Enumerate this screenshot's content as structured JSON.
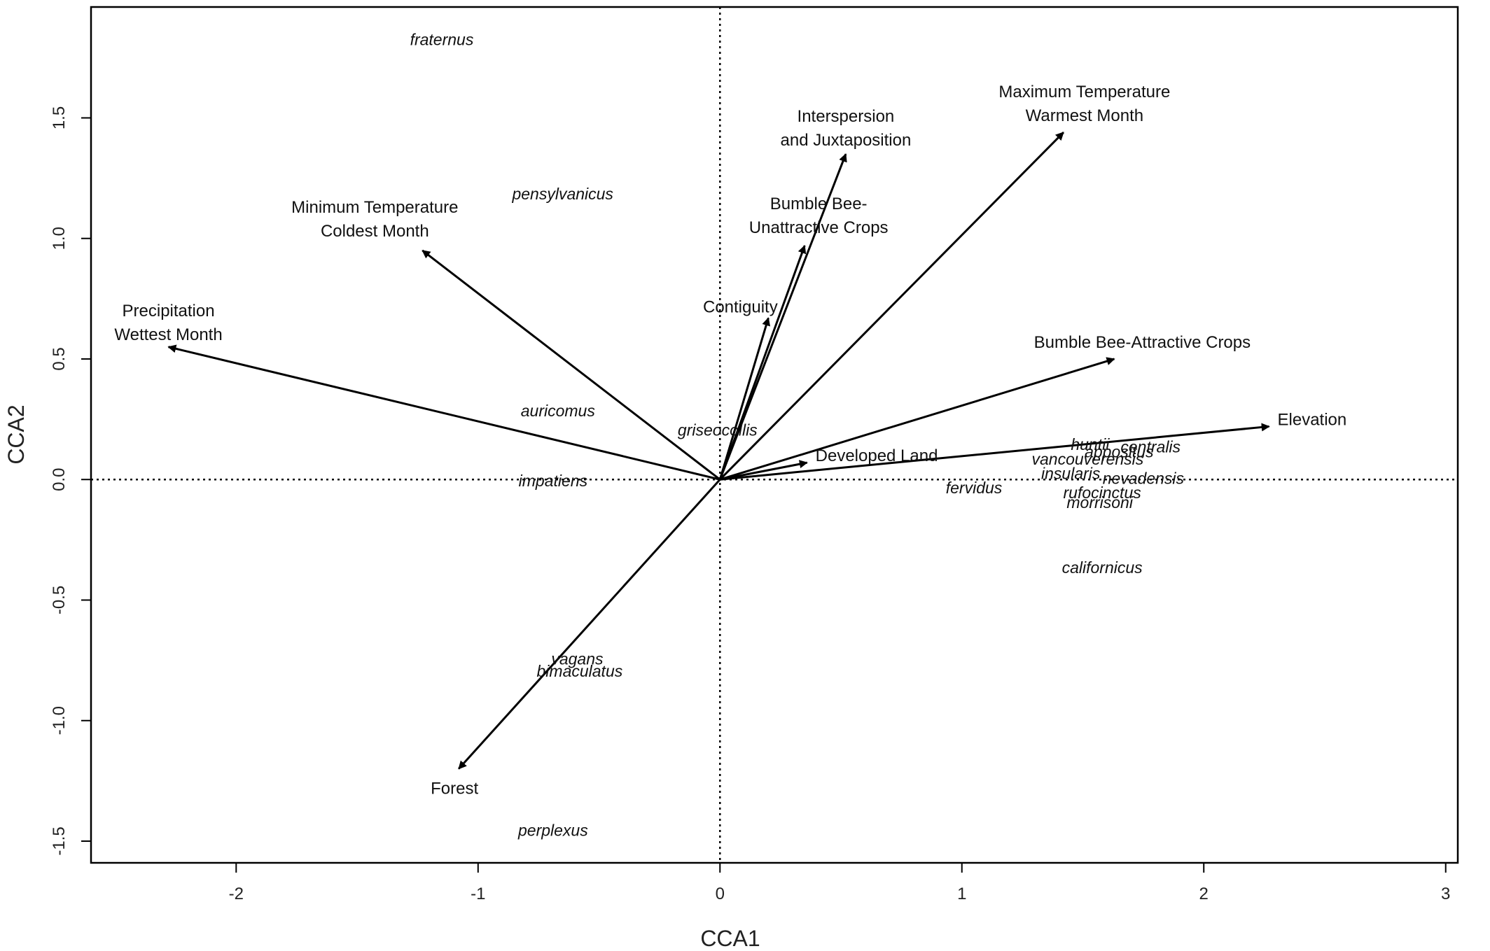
{
  "chart_data": {
    "type": "scatter",
    "subtype": "cca-biplot",
    "title": "",
    "xlabel": "CCA1",
    "ylabel": "CCA2",
    "xlim": [
      -2.6,
      3.05
    ],
    "ylim": [
      -1.59,
      1.96
    ],
    "xticks": [
      -2,
      -1,
      0,
      1,
      2,
      3
    ],
    "yticks": [
      -1.5,
      -1.0,
      -0.5,
      0.0,
      0.5,
      1.0,
      1.5
    ],
    "xtick_labels": [
      "-2",
      "-1",
      "0",
      "1",
      "2",
      "3"
    ],
    "ytick_labels": [
      "-1.5",
      "-1.0",
      "-0.5",
      "0.0",
      "0.5",
      "1.0",
      "1.5"
    ],
    "reference_lines": {
      "x": 0,
      "y": 0,
      "style": "dotted"
    },
    "grid": false,
    "legend": "none",
    "line_color": "#000000",
    "environmental_vectors": [
      {
        "label": [
          "Precipitation",
          "Wettest Month"
        ],
        "x": -2.28,
        "y": 0.55
      },
      {
        "label": [
          "Minimum Temperature",
          "Coldest Month"
        ],
        "x": -1.23,
        "y": 0.95
      },
      {
        "label": [
          "Interspersion",
          "and Juxtaposition"
        ],
        "x": 0.52,
        "y": 1.35
      },
      {
        "label": [
          "Maximum Temperature",
          "Warmest Month"
        ],
        "x": 1.42,
        "y": 1.44
      },
      {
        "label": [
          "Bumble Bee-",
          "Unattractive Crops"
        ],
        "x": 0.35,
        "y": 0.97
      },
      {
        "label": [
          "Contiguity"
        ],
        "x": 0.2,
        "y": 0.67
      },
      {
        "label": [
          "Bumble Bee-Attractive Crops"
        ],
        "x": 1.63,
        "y": 0.5
      },
      {
        "label": [
          "Elevation"
        ],
        "x": 2.27,
        "y": 0.22
      },
      {
        "label": [
          "Developed Land"
        ],
        "x": 0.36,
        "y": 0.07
      },
      {
        "label": [
          "Forest"
        ],
        "x": -1.08,
        "y": -1.2
      }
    ],
    "species": [
      {
        "name": "fraternus",
        "x": -1.15,
        "y": 1.82
      },
      {
        "name": "pensylvanicus",
        "x": -0.65,
        "y": 1.18
      },
      {
        "name": "auricomus",
        "x": -0.67,
        "y": 0.28
      },
      {
        "name": "griseocollis",
        "x": -0.01,
        "y": 0.2
      },
      {
        "name": "impatiens",
        "x": -0.69,
        "y": -0.01
      },
      {
        "name": "vagans",
        "x": -0.59,
        "y": -0.75
      },
      {
        "name": "bimaculatus",
        "x": -0.58,
        "y": -0.8
      },
      {
        "name": "perplexus",
        "x": -0.69,
        "y": -1.46
      },
      {
        "name": "fervidus",
        "x": 1.05,
        "y": -0.04
      },
      {
        "name": "huntii",
        "x": 1.53,
        "y": 0.14
      },
      {
        "name": "centralis",
        "x": 1.78,
        "y": 0.13
      },
      {
        "name": "appositus",
        "x": 1.65,
        "y": 0.11
      },
      {
        "name": "vancouverensis",
        "x": 1.52,
        "y": 0.08
      },
      {
        "name": "insularis",
        "x": 1.45,
        "y": 0.02
      },
      {
        "name": "nevadensis",
        "x": 1.75,
        "y": 0.0
      },
      {
        "name": "rufocinctus",
        "x": 1.58,
        "y": -0.06
      },
      {
        "name": "morrisoni",
        "x": 1.57,
        "y": -0.1
      },
      {
        "name": "californicus",
        "x": 1.58,
        "y": -0.37
      }
    ]
  }
}
